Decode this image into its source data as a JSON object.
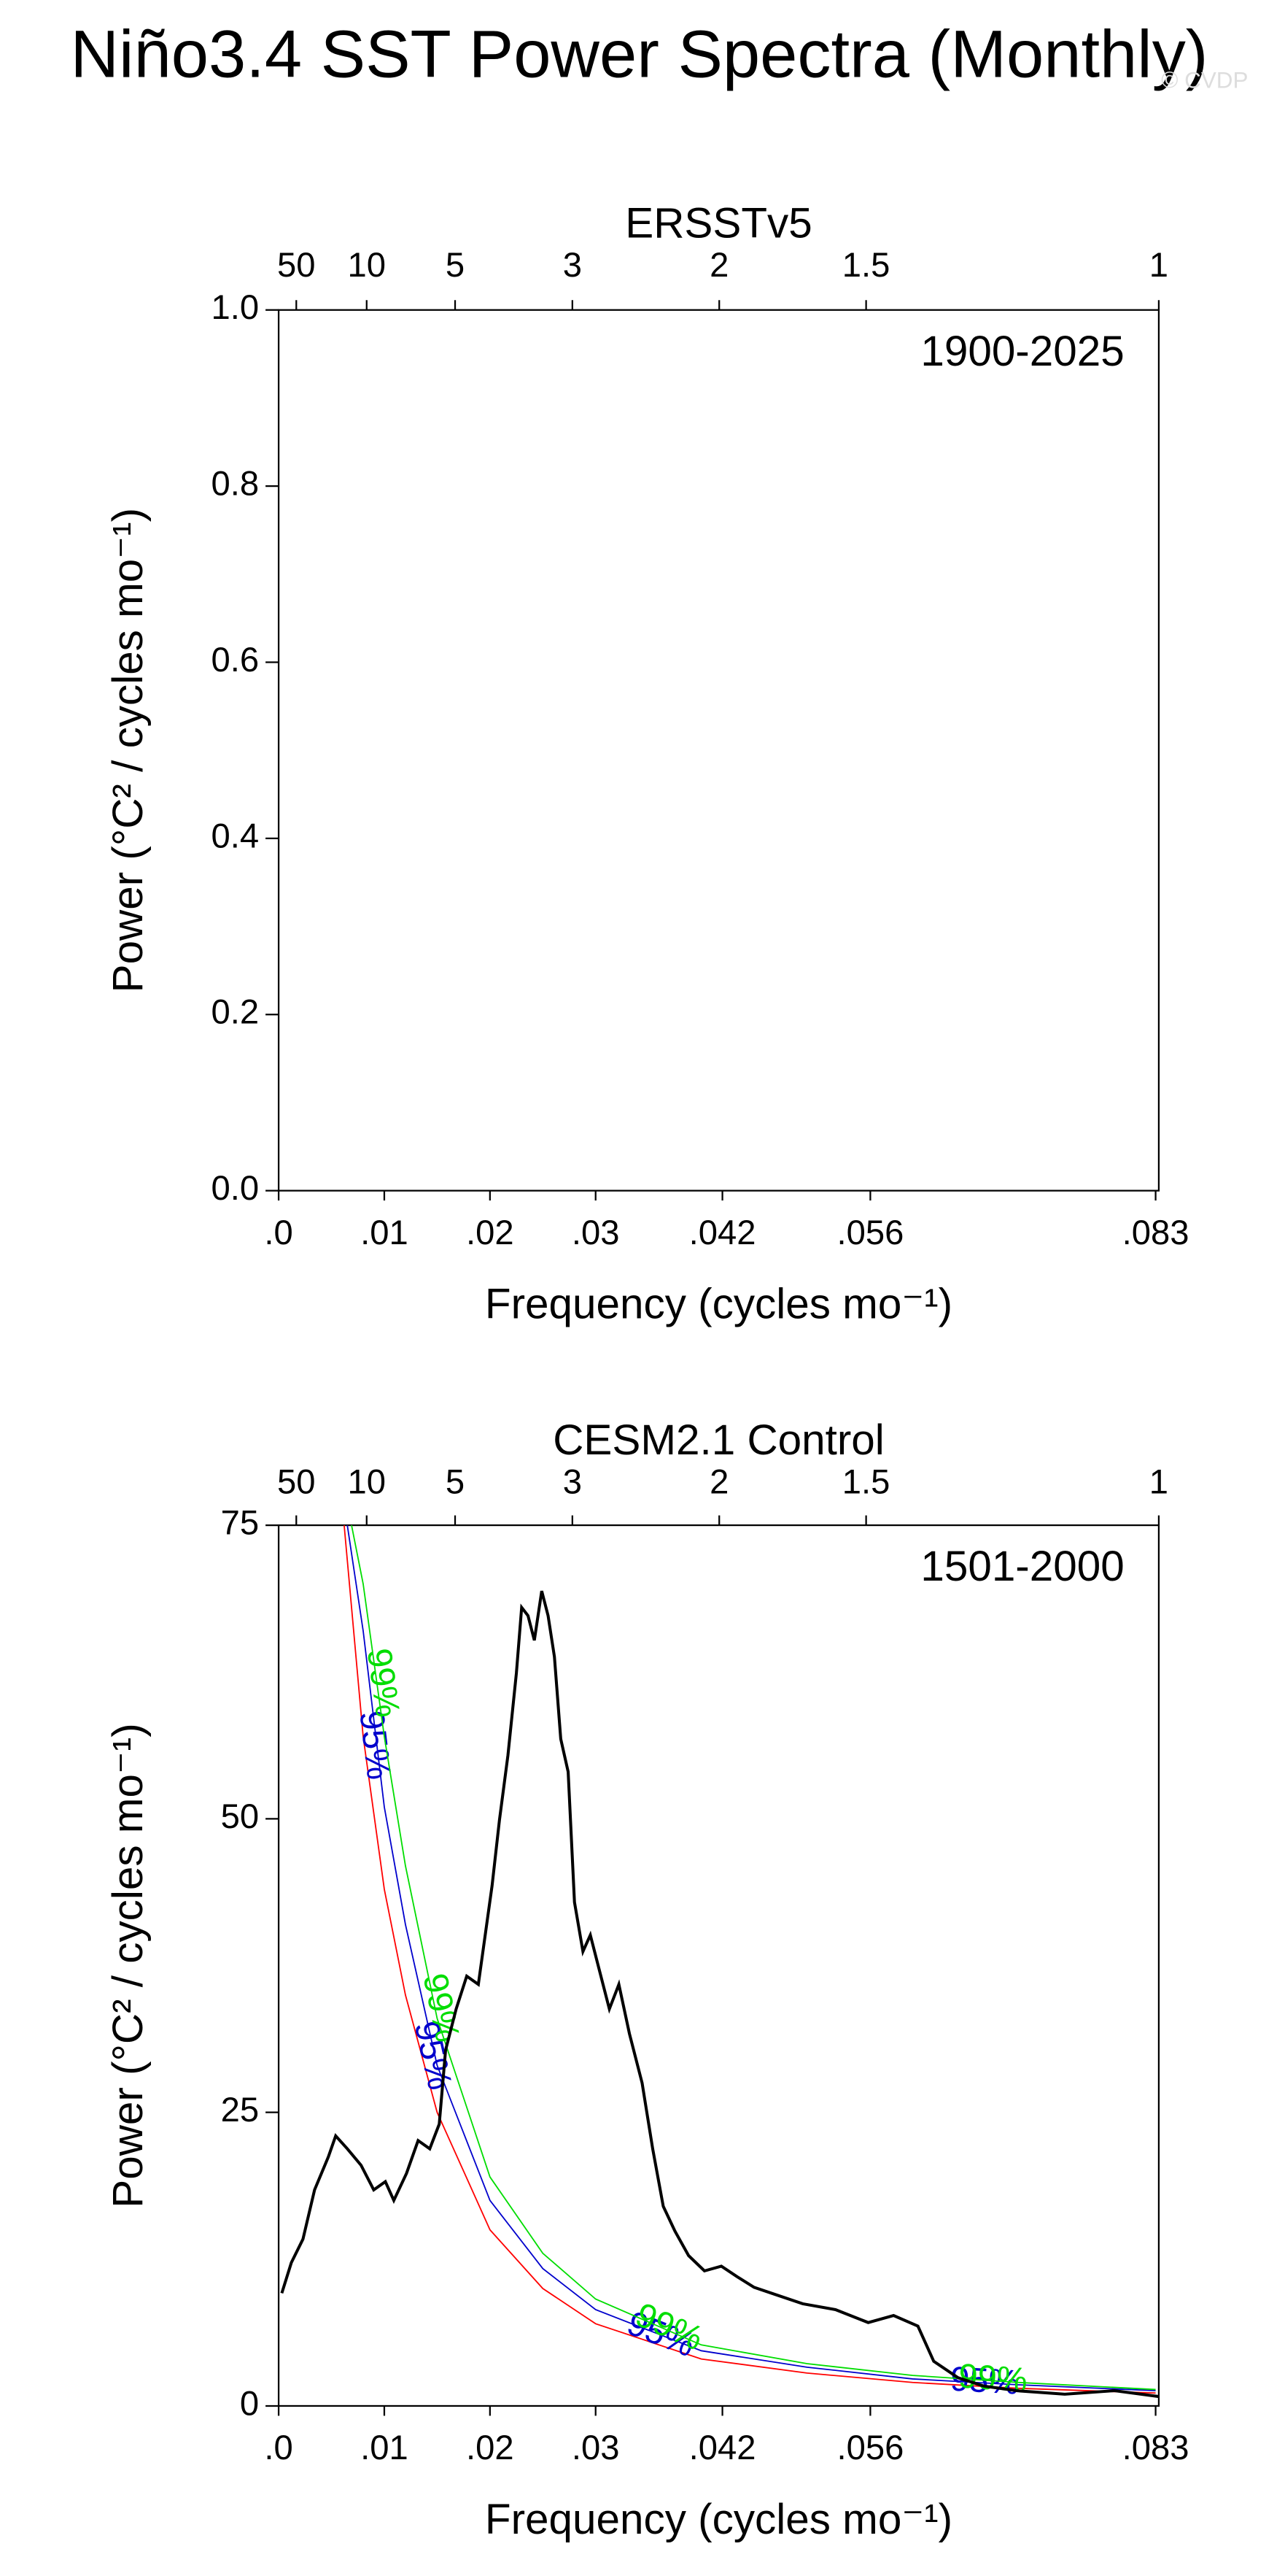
{
  "title": "Niño3.4 SST Power Spectra (Monthly)",
  "watermark": "© CVDP",
  "chart_data": [
    {
      "type": "line",
      "subtitle": "ERSSTv5",
      "annotation": "1900-2025",
      "xlabel": "Frequency (cycles mo⁻¹)",
      "ylabel": "Power (°C² / cycles mo⁻¹)",
      "xlim": [
        0,
        0.0833
      ],
      "ylim": [
        0,
        1
      ],
      "xticks": [
        {
          "value": 0,
          "label": ".0"
        },
        {
          "value": 0.01,
          "label": ".01"
        },
        {
          "value": 0.02,
          "label": ".02"
        },
        {
          "value": 0.03,
          "label": ".03"
        },
        {
          "value": 0.042,
          "label": ".042"
        },
        {
          "value": 0.056,
          "label": ".056"
        },
        {
          "value": 0.083,
          "label": ".083"
        }
      ],
      "x2ticks": [
        {
          "value": 0.00167,
          "label": "50"
        },
        {
          "value": 0.00833,
          "label": "10"
        },
        {
          "value": 0.0167,
          "label": "5"
        },
        {
          "value": 0.0278,
          "label": "3"
        },
        {
          "value": 0.0417,
          "label": "2"
        },
        {
          "value": 0.0556,
          "label": "1.5"
        },
        {
          "value": 0.0833,
          "label": "1"
        }
      ],
      "yticks": [
        {
          "value": 0,
          "label": "0.0"
        },
        0.2,
        0.4,
        0.6,
        0.8,
        {
          "value": 1,
          "label": "1.0"
        }
      ],
      "series": []
    },
    {
      "type": "line",
      "subtitle": "CESM2.1 Control",
      "annotation": "1501-2000",
      "xlabel": "Frequency (cycles mo⁻¹)",
      "ylabel": "Power (°C² / cycles mo⁻¹)",
      "xlim": [
        0,
        0.0833
      ],
      "ylim": [
        0,
        75
      ],
      "xticks": [
        {
          "value": 0,
          "label": ".0"
        },
        {
          "value": 0.01,
          "label": ".01"
        },
        {
          "value": 0.02,
          "label": ".02"
        },
        {
          "value": 0.03,
          "label": ".03"
        },
        {
          "value": 0.042,
          "label": ".042"
        },
        {
          "value": 0.056,
          "label": ".056"
        },
        {
          "value": 0.083,
          "label": ".083"
        }
      ],
      "x2ticks": [
        {
          "value": 0.00167,
          "label": "50"
        },
        {
          "value": 0.00833,
          "label": "10"
        },
        {
          "value": 0.0167,
          "label": "5"
        },
        {
          "value": 0.0278,
          "label": "3"
        },
        {
          "value": 0.0417,
          "label": "2"
        },
        {
          "value": 0.0556,
          "label": "1.5"
        },
        {
          "value": 0.0833,
          "label": "1"
        }
      ],
      "yticks": [
        0,
        25,
        50,
        75
      ],
      "series": [
        {
          "color": "#ff0000",
          "x": [
            0.0062,
            0.008,
            0.01,
            0.012,
            0.015,
            0.02,
            0.025,
            0.03,
            0.04,
            0.05,
            0.06,
            0.07,
            0.083
          ],
          "values": [
            75,
            57,
            44,
            35,
            25,
            15,
            10,
            7,
            4,
            2.8,
            2,
            1.5,
            1.1
          ]
        },
        {
          "name": "95%",
          "color": "#0000cc",
          "x": [
            0.0065,
            0.008,
            0.01,
            0.012,
            0.015,
            0.02,
            0.025,
            0.03,
            0.04,
            0.05,
            0.06,
            0.07,
            0.083
          ],
          "values": [
            75,
            66,
            51,
            41,
            29,
            17.5,
            11.7,
            8.2,
            4.7,
            3.3,
            2.3,
            1.8,
            1.3
          ]
        },
        {
          "name": "99%",
          "color": "#00dd00",
          "x": [
            0.0069,
            0.008,
            0.01,
            0.012,
            0.015,
            0.02,
            0.025,
            0.03,
            0.04,
            0.05,
            0.06,
            0.07,
            0.083
          ],
          "values": [
            75,
            70,
            57,
            46,
            33,
            19.5,
            13,
            9.1,
            5.2,
            3.6,
            2.6,
            2.0,
            1.4
          ]
        },
        {
          "color": "#000000",
          "x": [
            0.0003,
            0.0012,
            0.0023,
            0.0034,
            0.0047,
            0.0054,
            0.0065,
            0.0078,
            0.009,
            0.0101,
            0.0109,
            0.0121,
            0.0132,
            0.0143,
            0.0152,
            0.0158,
            0.0168,
            0.0178,
            0.0189,
            0.0202,
            0.0209,
            0.0217,
            0.0225,
            0.023,
            0.0236,
            0.0242,
            0.0249,
            0.0255,
            0.0261,
            0.0267,
            0.0274,
            0.028,
            0.0288,
            0.0295,
            0.0303,
            0.0313,
            0.0322,
            0.0332,
            0.0344,
            0.0354,
            0.0364,
            0.0375,
            0.0388,
            0.0403,
            0.0419,
            0.0434,
            0.045,
            0.0473,
            0.0496,
            0.0527,
            0.0558,
            0.0582,
            0.0605,
            0.062,
            0.0643,
            0.0667,
            0.0698,
            0.0744,
            0.0791,
            0.0833
          ],
          "values": [
            9.6,
            12.2,
            14.2,
            18.4,
            21.2,
            23.0,
            21.9,
            20.5,
            18.4,
            19.1,
            17.5,
            19.8,
            22.6,
            21.9,
            24.0,
            30.3,
            33.8,
            36.6,
            35.9,
            44.3,
            49.9,
            55.4,
            62.4,
            68.0,
            67.3,
            65.2,
            69.4,
            67.3,
            63.8,
            56.8,
            54.0,
            42.9,
            38.7,
            40.1,
            37.3,
            33.8,
            35.9,
            31.7,
            27.5,
            21.9,
            17.0,
            14.9,
            12.8,
            11.5,
            11.9,
            11.0,
            10.1,
            9.4,
            8.7,
            8.2,
            7.1,
            7.7,
            6.8,
            3.8,
            2.4,
            1.7,
            1.3,
            1.0,
            1.3,
            0.8
          ]
        }
      ]
    }
  ]
}
